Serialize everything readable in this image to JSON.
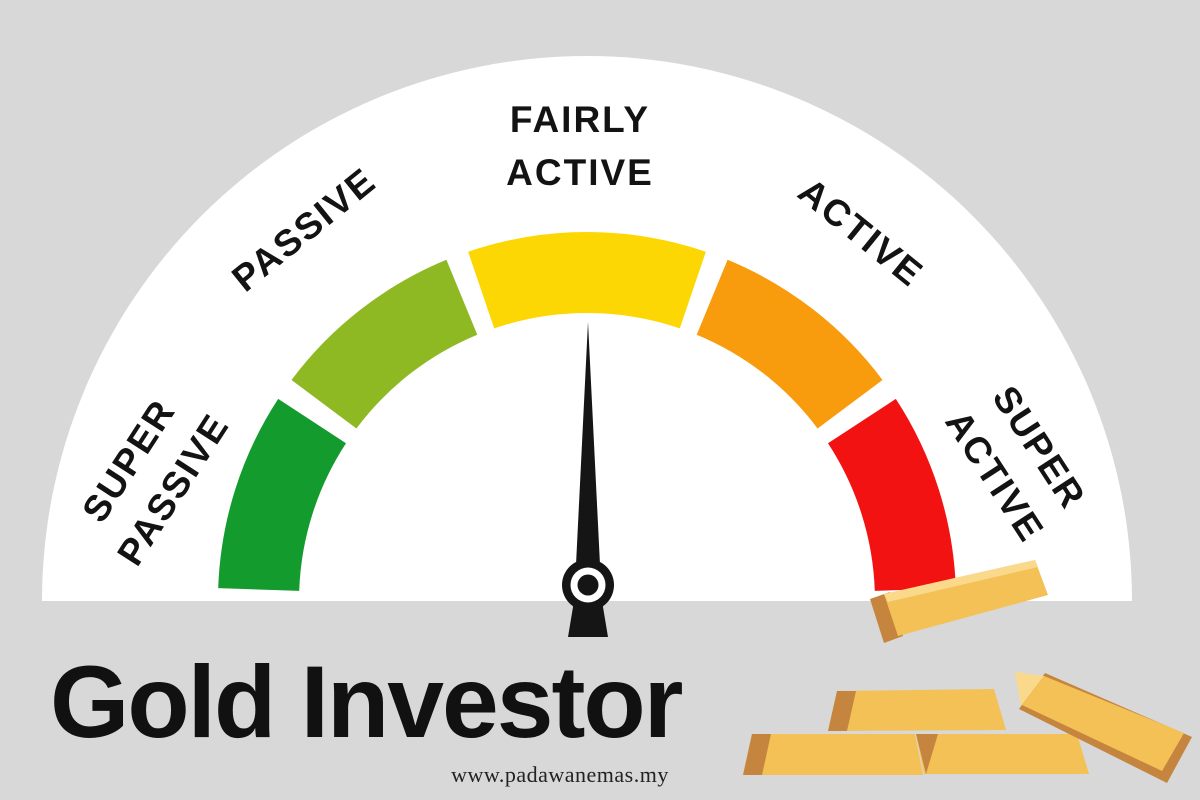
{
  "page": {
    "background": "#d7d8d7"
  },
  "title": {
    "text": "Gold Investor",
    "color": "#111111"
  },
  "website": {
    "text": "www.padawanemas.my"
  },
  "decor": {
    "dial_face_color": "#ffffff",
    "gold_bar_colors": {
      "face": "#f3c155",
      "shade": "#c6853e",
      "highlight": "#fbd98c"
    }
  },
  "chart_data": {
    "type": "gauge",
    "title": "Gold Investor",
    "legend_position": "labels-around-arc",
    "segments": [
      {
        "label": "SUPER PASSIVE",
        "color": "#149b2d",
        "start_angle_deg": 178.0,
        "end_angle_deg": 146.8
      },
      {
        "label": "PASSIVE",
        "color": "#8fb923",
        "start_angle_deg": 143.2,
        "end_angle_deg": 112.4
      },
      {
        "label": "FAIRLY ACTIVE",
        "color": "#fdd703",
        "start_angle_deg": 108.8,
        "end_angle_deg": 71.2
      },
      {
        "label": "ACTIVE",
        "color": "#f89b0c",
        "start_angle_deg": 67.6,
        "end_angle_deg": 36.8
      },
      {
        "label": "SUPER ACTIVE",
        "color": "#f31212",
        "start_angle_deg": 33.2,
        "end_angle_deg": 2.0
      }
    ],
    "needle": {
      "angle_deg": 90,
      "points_to": "FAIRLY ACTIVE",
      "color": "#151515"
    }
  }
}
